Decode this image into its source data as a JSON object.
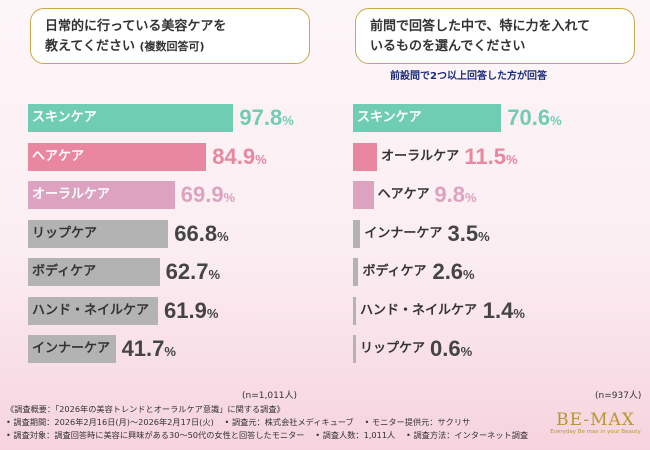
{
  "left": {
    "question_line1": "日常的に行っている美容ケアを",
    "question_line2": "教えてください",
    "question_sub": "(複数回答可)",
    "n_label": "(n=1,011人)"
  },
  "right": {
    "question_line1": "前問で回答した中で、特に力を入れて",
    "question_line2": "いるものを選んでください",
    "note": "前設問で2つ以上回答した方が回答",
    "n_label": "(n=937人)"
  },
  "footer": {
    "line1": "《調査概要：「2026年の美容トレンドとオーラルケア意識」に関する調査》",
    "line2": "• 調査期間：2026年2月16日(月)～2026年2月17日(火)　 • 調査元：株式会社メディキューブ　 • モニター提供元：サクリサ",
    "line3": "• 調査対象：調査回答時に美容に興味がある30～50代の女性と回答したモニター　 • 調査人数：1,011人　 • 調査方法：インターネット調査"
  },
  "logo": {
    "main": "BE-MAX",
    "tagline": "Everyday Be max in your Beauty"
  },
  "colors": {
    "teal": "#6fcdb3",
    "pink": "#e8879f",
    "mauve": "#dca2bf",
    "gray": "#b3b3b3"
  },
  "chart_data": [
    {
      "type": "bar",
      "orientation": "horizontal",
      "unit": "%",
      "xlim": [
        0,
        100
      ],
      "categories": [
        "スキンケア",
        "ヘアケア",
        "オーラルケア",
        "リップケア",
        "ボディケア",
        "ハンド・ネイルケア",
        "インナーケア"
      ],
      "values": [
        97.8,
        84.9,
        69.9,
        66.8,
        62.7,
        61.9,
        41.7
      ],
      "bar_colors": [
        "#6fcdb3",
        "#e8879f",
        "#dca2bf",
        "#b3b3b3",
        "#b3b3b3",
        "#b3b3b3",
        "#b3b3b3"
      ],
      "value_colors": [
        "#6fcdb3",
        "#e8879f",
        "#dca2bf",
        "#444444",
        "#444444",
        "#444444",
        "#444444"
      ]
    },
    {
      "type": "bar",
      "orientation": "horizontal",
      "unit": "%",
      "xlim": [
        0,
        100
      ],
      "categories": [
        "スキンケア",
        "オーラルケア",
        "ヘアケア",
        "インナーケア",
        "ボディケア",
        "ハンド・ネイルケア",
        "リップケア"
      ],
      "values": [
        70.6,
        11.5,
        9.8,
        3.5,
        2.6,
        1.4,
        0.6
      ],
      "bar_colors": [
        "#6fcdb3",
        "#e8879f",
        "#dca2bf",
        "#b3b3b3",
        "#b3b3b3",
        "#b3b3b3",
        "#b3b3b3"
      ],
      "value_colors": [
        "#6fcdb3",
        "#e8879f",
        "#dca2bf",
        "#444444",
        "#444444",
        "#444444",
        "#444444"
      ]
    }
  ]
}
